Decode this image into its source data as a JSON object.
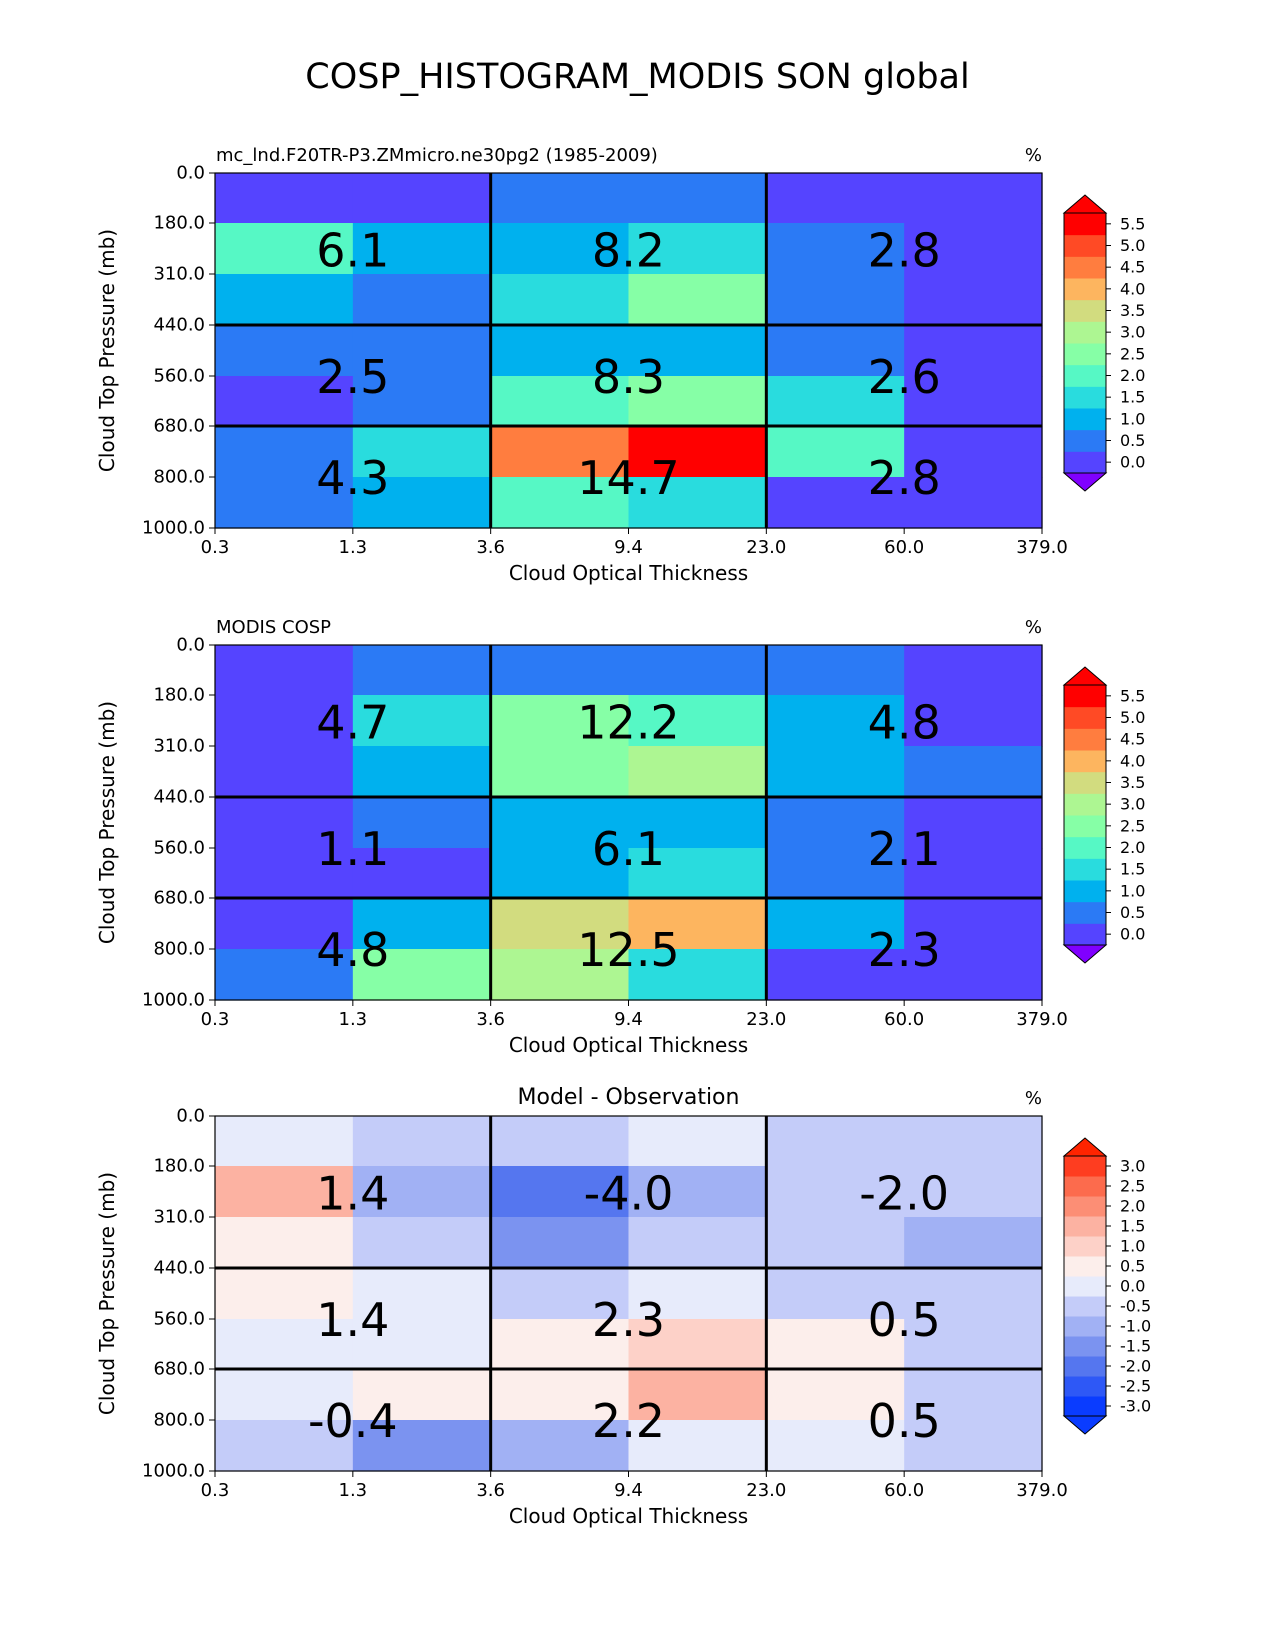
{
  "figure": {
    "title": "COSP_HISTOGRAM_MODIS SON global"
  },
  "chart_data": [
    {
      "type": "heatmap",
      "title": "",
      "left_title": "mc_lnd.F20TR-P3.ZMmicro.ne30pg2 (1985-2009)",
      "units": "%",
      "xlabel": "Cloud Optical Thickness",
      "ylabel": "Cloud Top Pressure (mb)",
      "x_ticks": [
        "0.3",
        "1.3",
        "3.6",
        "9.4",
        "23.0",
        "60.0",
        "379.0"
      ],
      "y_ticks": [
        "0.0",
        "180.0",
        "310.0",
        "440.0",
        "560.0",
        "680.0",
        "800.0",
        "1000.0"
      ],
      "cells": [
        [
          0.2,
          0.2,
          0.7,
          0.7,
          0.2,
          0.2
        ],
        [
          2.2,
          1.4,
          1.4,
          1.9,
          0.7,
          0.2
        ],
        [
          1.4,
          0.7,
          1.9,
          2.7,
          0.7,
          0.2
        ],
        [
          0.7,
          0.7,
          1.4,
          1.4,
          0.7,
          0.2
        ],
        [
          0.2,
          0.7,
          2.2,
          2.7,
          1.9,
          0.2
        ],
        [
          0.7,
          1.9,
          4.7,
          5.7,
          2.2,
          0.2
        ],
        [
          0.7,
          1.4,
          2.2,
          1.9,
          0.2,
          0.2
        ]
      ],
      "group_values": [
        [
          "6.1",
          "8.2",
          "2.8"
        ],
        [
          "2.5",
          "8.3",
          "2.6"
        ],
        [
          "4.3",
          "14.7",
          "2.8"
        ]
      ],
      "colorbar": {
        "ticks": [
          "0.0",
          "0.5",
          "1.0",
          "1.5",
          "2.0",
          "2.5",
          "3.0",
          "3.5",
          "4.0",
          "4.5",
          "5.0",
          "5.5"
        ],
        "colors": [
          "#5544ff",
          "#2b7af5",
          "#00b1ee",
          "#29dcde",
          "#56f8c5",
          "#86ffa6",
          "#adf692",
          "#d2dc7f",
          "#fdb55f",
          "#ff7d3f",
          "#ff4a25",
          "#ff0000"
        ],
        "under_color": "#8000ff",
        "over_color": "#ff0000"
      }
    },
    {
      "type": "heatmap",
      "title": "",
      "left_title": "MODIS COSP",
      "units": "%",
      "xlabel": "Cloud Optical Thickness",
      "ylabel": "Cloud Top Pressure (mb)",
      "x_ticks": [
        "0.3",
        "1.3",
        "3.6",
        "9.4",
        "23.0",
        "60.0",
        "379.0"
      ],
      "y_ticks": [
        "0.0",
        "180.0",
        "310.0",
        "440.0",
        "560.0",
        "680.0",
        "800.0",
        "1000.0"
      ],
      "cells": [
        [
          0.2,
          0.7,
          0.7,
          0.7,
          0.7,
          0.2
        ],
        [
          0.2,
          1.9,
          2.7,
          2.2,
          1.4,
          0.2
        ],
        [
          0.2,
          1.4,
          2.7,
          3.2,
          1.4,
          0.7
        ],
        [
          0.2,
          0.7,
          1.4,
          1.4,
          0.7,
          0.2
        ],
        [
          0.2,
          0.2,
          1.4,
          1.9,
          0.7,
          0.2
        ],
        [
          0.2,
          1.4,
          3.7,
          4.2,
          1.4,
          0.2
        ],
        [
          0.7,
          2.7,
          3.2,
          1.9,
          0.2,
          0.2
        ]
      ],
      "group_values": [
        [
          "4.7",
          "12.2",
          "4.8"
        ],
        [
          "1.1",
          "6.1",
          "2.1"
        ],
        [
          "4.8",
          "12.5",
          "2.3"
        ]
      ],
      "colorbar": {
        "ticks": [
          "0.0",
          "0.5",
          "1.0",
          "1.5",
          "2.0",
          "2.5",
          "3.0",
          "3.5",
          "4.0",
          "4.5",
          "5.0",
          "5.5"
        ],
        "colors": [
          "#5544ff",
          "#2b7af5",
          "#00b1ee",
          "#29dcde",
          "#56f8c5",
          "#86ffa6",
          "#adf692",
          "#d2dc7f",
          "#fdb55f",
          "#ff7d3f",
          "#ff4a25",
          "#ff0000"
        ],
        "under_color": "#8000ff",
        "over_color": "#ff0000"
      }
    },
    {
      "type": "heatmap",
      "title": "Model - Observation",
      "left_title": "",
      "units": "%",
      "xlabel": "Cloud Optical Thickness",
      "ylabel": "Cloud Top Pressure (mb)",
      "x_ticks": [
        "0.3",
        "1.3",
        "3.6",
        "9.4",
        "23.0",
        "60.0",
        "379.0"
      ],
      "y_ticks": [
        "0.0",
        "180.0",
        "310.0",
        "440.0",
        "560.0",
        "680.0",
        "800.0",
        "1000.0"
      ],
      "cells": [
        [
          0.1,
          -0.2,
          -0.2,
          0.1,
          -0.2,
          -0.2
        ],
        [
          1.7,
          -0.7,
          -1.7,
          -0.7,
          -0.2,
          -0.2
        ],
        [
          0.7,
          -0.2,
          -1.2,
          -0.2,
          -0.2,
          -0.7
        ],
        [
          0.7,
          0.1,
          -0.2,
          0.1,
          -0.2,
          -0.2
        ],
        [
          0.1,
          0.1,
          0.7,
          1.2,
          0.7,
          -0.2
        ],
        [
          0.1,
          0.7,
          0.7,
          1.7,
          0.7,
          -0.2
        ],
        [
          -0.2,
          -1.2,
          -0.7,
          0.1,
          0.1,
          -0.2
        ]
      ],
      "group_values": [
        [
          "1.4",
          "-4.0",
          "-2.0"
        ],
        [
          "1.4",
          "2.3",
          "0.5"
        ],
        [
          "-0.4",
          "2.2",
          "0.5"
        ]
      ],
      "colorbar": {
        "ticks": [
          "-3.0",
          "-2.5",
          "-2.0",
          "-1.5",
          "-1.0",
          "-0.5",
          "0.0",
          "0.5",
          "1.0",
          "1.5",
          "2.0",
          "2.5",
          "3.0"
        ],
        "colors": [
          "#0a3cff",
          "#2e58f6",
          "#5576ef",
          "#7b93f0",
          "#a1b1f4",
          "#c4ccf9",
          "#e7ebfb",
          "#fceeeb",
          "#fdd1c8",
          "#fcb2a2",
          "#fc8e75",
          "#fc6b4d",
          "#fe3d20",
          "#ff2400"
        ],
        "under_color": "#0a3cff",
        "over_color": "#ff2400"
      }
    }
  ]
}
